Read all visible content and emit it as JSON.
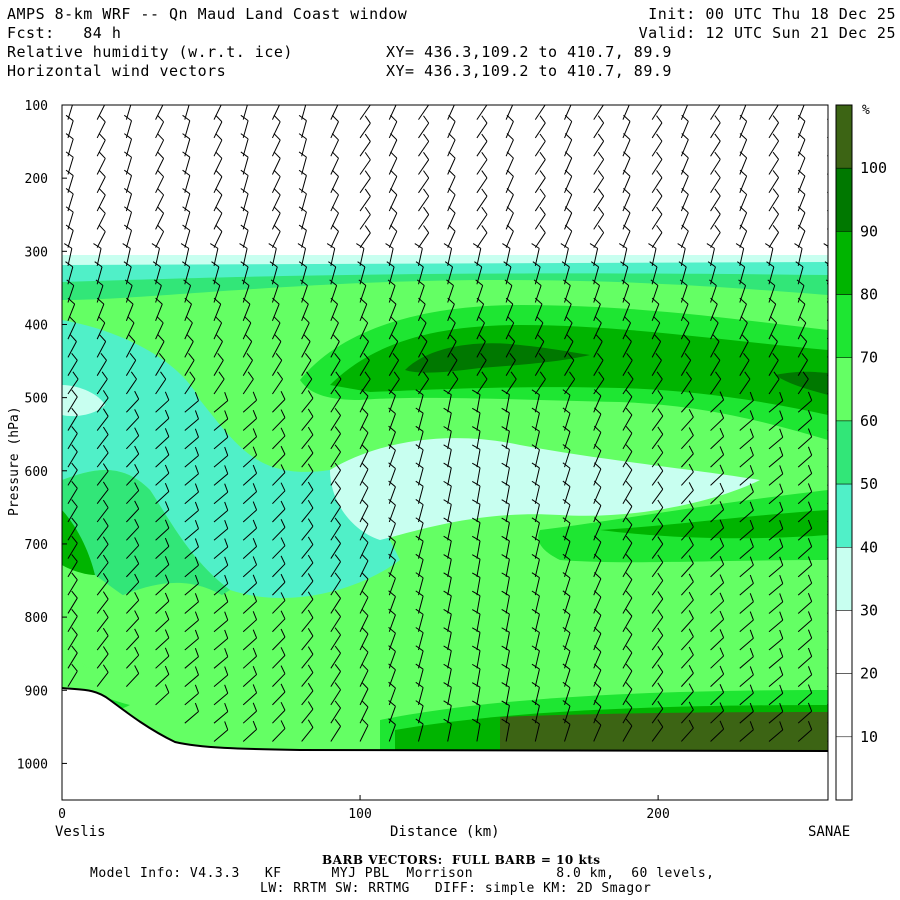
{
  "header": {
    "title": "AMPS 8-km WRF -- Qn Maud Land Coast window",
    "fcst": "Fcst:   84 h",
    "init": "Init: 00 UTC Thu 18 Dec 25",
    "valid": "Valid: 12 UTC Sun 21 Dec 25",
    "field1": "Relative humidity (w.r.t. ice)",
    "field2": "Horizontal wind vectors",
    "xy1": "XY= 436.3,109.2 to 410.7, 89.9",
    "xy2": "XY= 436.3,109.2 to 410.7, 89.9"
  },
  "footer": {
    "barb_note": "BARB VECTORS:  FULL BARB = 10 kts",
    "model_line1": "Model Info: V4.3.3   KF      MYJ PBL  Morrison          8.0 km,  60 levels,",
    "model_line2": "LW: RRTM SW: RRTMG   DIFF: simple KM: 2D Smagor"
  },
  "chart_data": {
    "type": "heatmap",
    "subtype": "vertical cross-section",
    "xlabel": "Distance (km)",
    "ylabel": "Pressure (hPa)",
    "x_start_label": "Veslis",
    "x_end_label": "SANAE",
    "xlim": [
      0,
      257
    ],
    "ylim": [
      1050,
      100
    ],
    "x_ticks": [
      0,
      100,
      200
    ],
    "y_ticks": [
      100,
      200,
      300,
      400,
      500,
      600,
      700,
      800,
      900,
      1000
    ],
    "colorbar": {
      "unit": "%",
      "levels": [
        10,
        20,
        30,
        40,
        50,
        60,
        70,
        80,
        90,
        100
      ],
      "colors": [
        "#ffffff",
        "#ffffff",
        "#ffffff",
        "#c8fff0",
        "#50f0c8",
        "#32e678",
        "#64ff64",
        "#1ee632",
        "#00b400",
        "#007800",
        "#3c6414"
      ]
    },
    "terrain": [
      [
        0,
        900
      ],
      [
        10,
        902
      ],
      [
        20,
        915
      ],
      [
        30,
        945
      ],
      [
        40,
        968
      ],
      [
        50,
        977
      ],
      [
        70,
        980
      ],
      [
        100,
        982
      ],
      [
        150,
        982
      ],
      [
        200,
        982
      ],
      [
        257,
        982
      ]
    ],
    "humidity_regions": [
      {
        "name": "dry upper",
        "range": "<30%",
        "p_range": [
          100,
          300
        ]
      },
      {
        "name": "mid-level dry tongue",
        "range": "30-40%",
        "center": [
          128,
          610
        ]
      },
      {
        "name": "moist upper band",
        "range": "80-100%",
        "center": [
          140,
          420
        ]
      },
      {
        "name": "moist low-level",
        "range": ">100%",
        "center": [
          180,
          955
        ]
      }
    ],
    "wind_barbs": {
      "full_barb_kts": 10
    }
  }
}
